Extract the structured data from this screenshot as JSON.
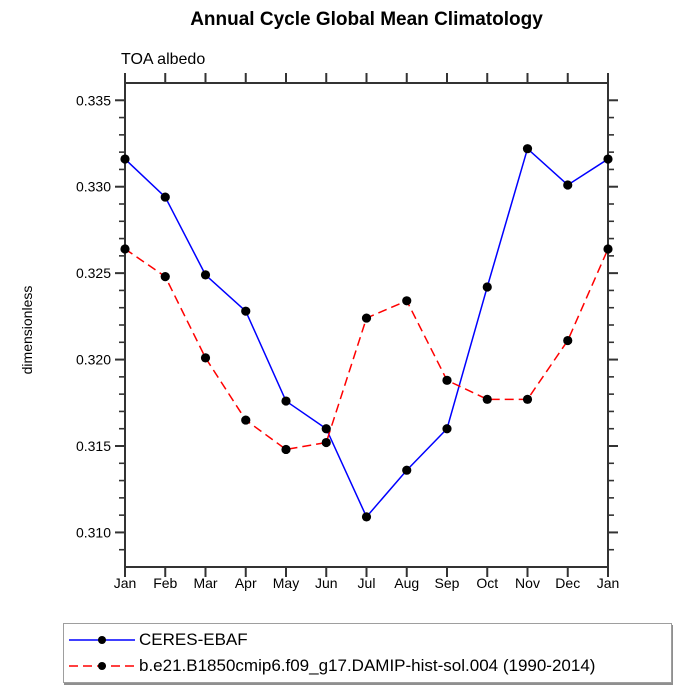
{
  "chart_data": {
    "type": "line",
    "title": "Annual Cycle Global Mean Climatology",
    "subtitle": "TOA albedo",
    "ylabel": "dimensionless",
    "xlabel": "",
    "categories": [
      "Jan",
      "Feb",
      "Mar",
      "Apr",
      "May",
      "Jun",
      "Jul",
      "Aug",
      "Sep",
      "Oct",
      "Nov",
      "Dec",
      "Jan"
    ],
    "y_ticks": [
      0.31,
      0.315,
      0.32,
      0.325,
      0.33,
      0.335
    ],
    "y_tick_labels": [
      "0.310",
      "0.315",
      "0.320",
      "0.325",
      "0.330",
      "0.335"
    ],
    "y_minor_tick_step": 0.001,
    "ylim": [
      0.308,
      0.336
    ],
    "grid": false,
    "legend_position": "bottom-left",
    "marker_color": "#000000",
    "series": [
      {
        "name": "CERES-EBAF",
        "color": "#0000ff",
        "line_style": "solid",
        "marker": "filled-circle",
        "values": [
          0.3316,
          0.3294,
          0.3249,
          0.3228,
          0.3176,
          0.316,
          0.3109,
          0.3136,
          0.316,
          0.3242,
          0.3322,
          0.3301,
          0.3316
        ]
      },
      {
        "name": "b.e21.B1850cmip6.f09_g17.DAMIP-hist-sol.004 (1990-2014)",
        "color": "#ff0000",
        "line_style": "dashed",
        "marker": "filled-circle",
        "values": [
          0.3264,
          0.3248,
          0.3201,
          0.3165,
          0.3148,
          0.3152,
          0.3224,
          0.3234,
          0.3188,
          0.3177,
          0.3177,
          0.3211,
          0.3264
        ]
      }
    ]
  }
}
